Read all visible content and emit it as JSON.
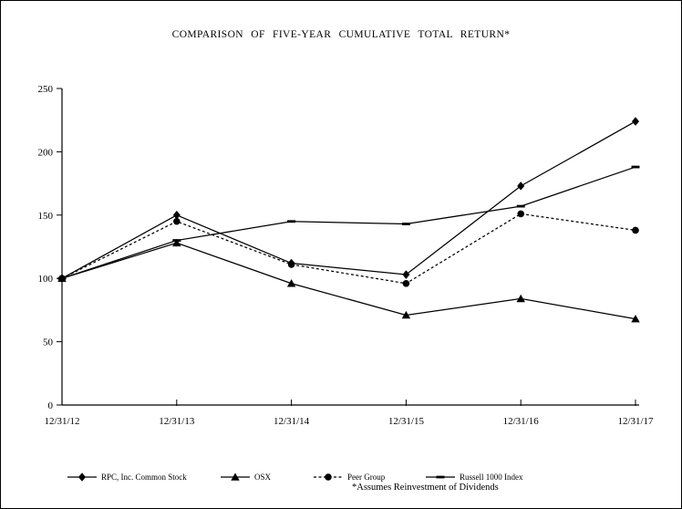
{
  "chart_data": {
    "type": "line",
    "title": "COMPARISON OF FIVE-YEAR CUMULATIVE TOTAL RETURN*",
    "footnote": "*Assumes Reinvestment of Dividends",
    "categories": [
      "12/31/12",
      "12/31/13",
      "12/31/14",
      "12/31/15",
      "12/31/16",
      "12/31/17"
    ],
    "y_ticks": [
      0,
      50,
      100,
      150,
      200,
      250
    ],
    "ylim": [
      0,
      250
    ],
    "grid": false,
    "legend_position": "bottom",
    "line_color": "#000000",
    "background_color": "#ffffff",
    "series": [
      {
        "name": "RPC, Inc. Common Stock",
        "marker": "diamond",
        "line": "solid",
        "values": [
          100,
          150,
          112,
          103,
          173,
          224
        ]
      },
      {
        "name": "OSX",
        "marker": "triangle",
        "line": "solid",
        "values": [
          100,
          128,
          96,
          71,
          84,
          68
        ]
      },
      {
        "name": "Peer Group",
        "marker": "circle",
        "line": "dashed",
        "values": [
          100,
          145,
          111,
          96,
          151,
          138
        ]
      },
      {
        "name": "Russell 1000 Index",
        "marker": "dash",
        "line": "solid",
        "values": [
          100,
          130,
          145,
          143,
          157,
          188
        ]
      }
    ]
  }
}
